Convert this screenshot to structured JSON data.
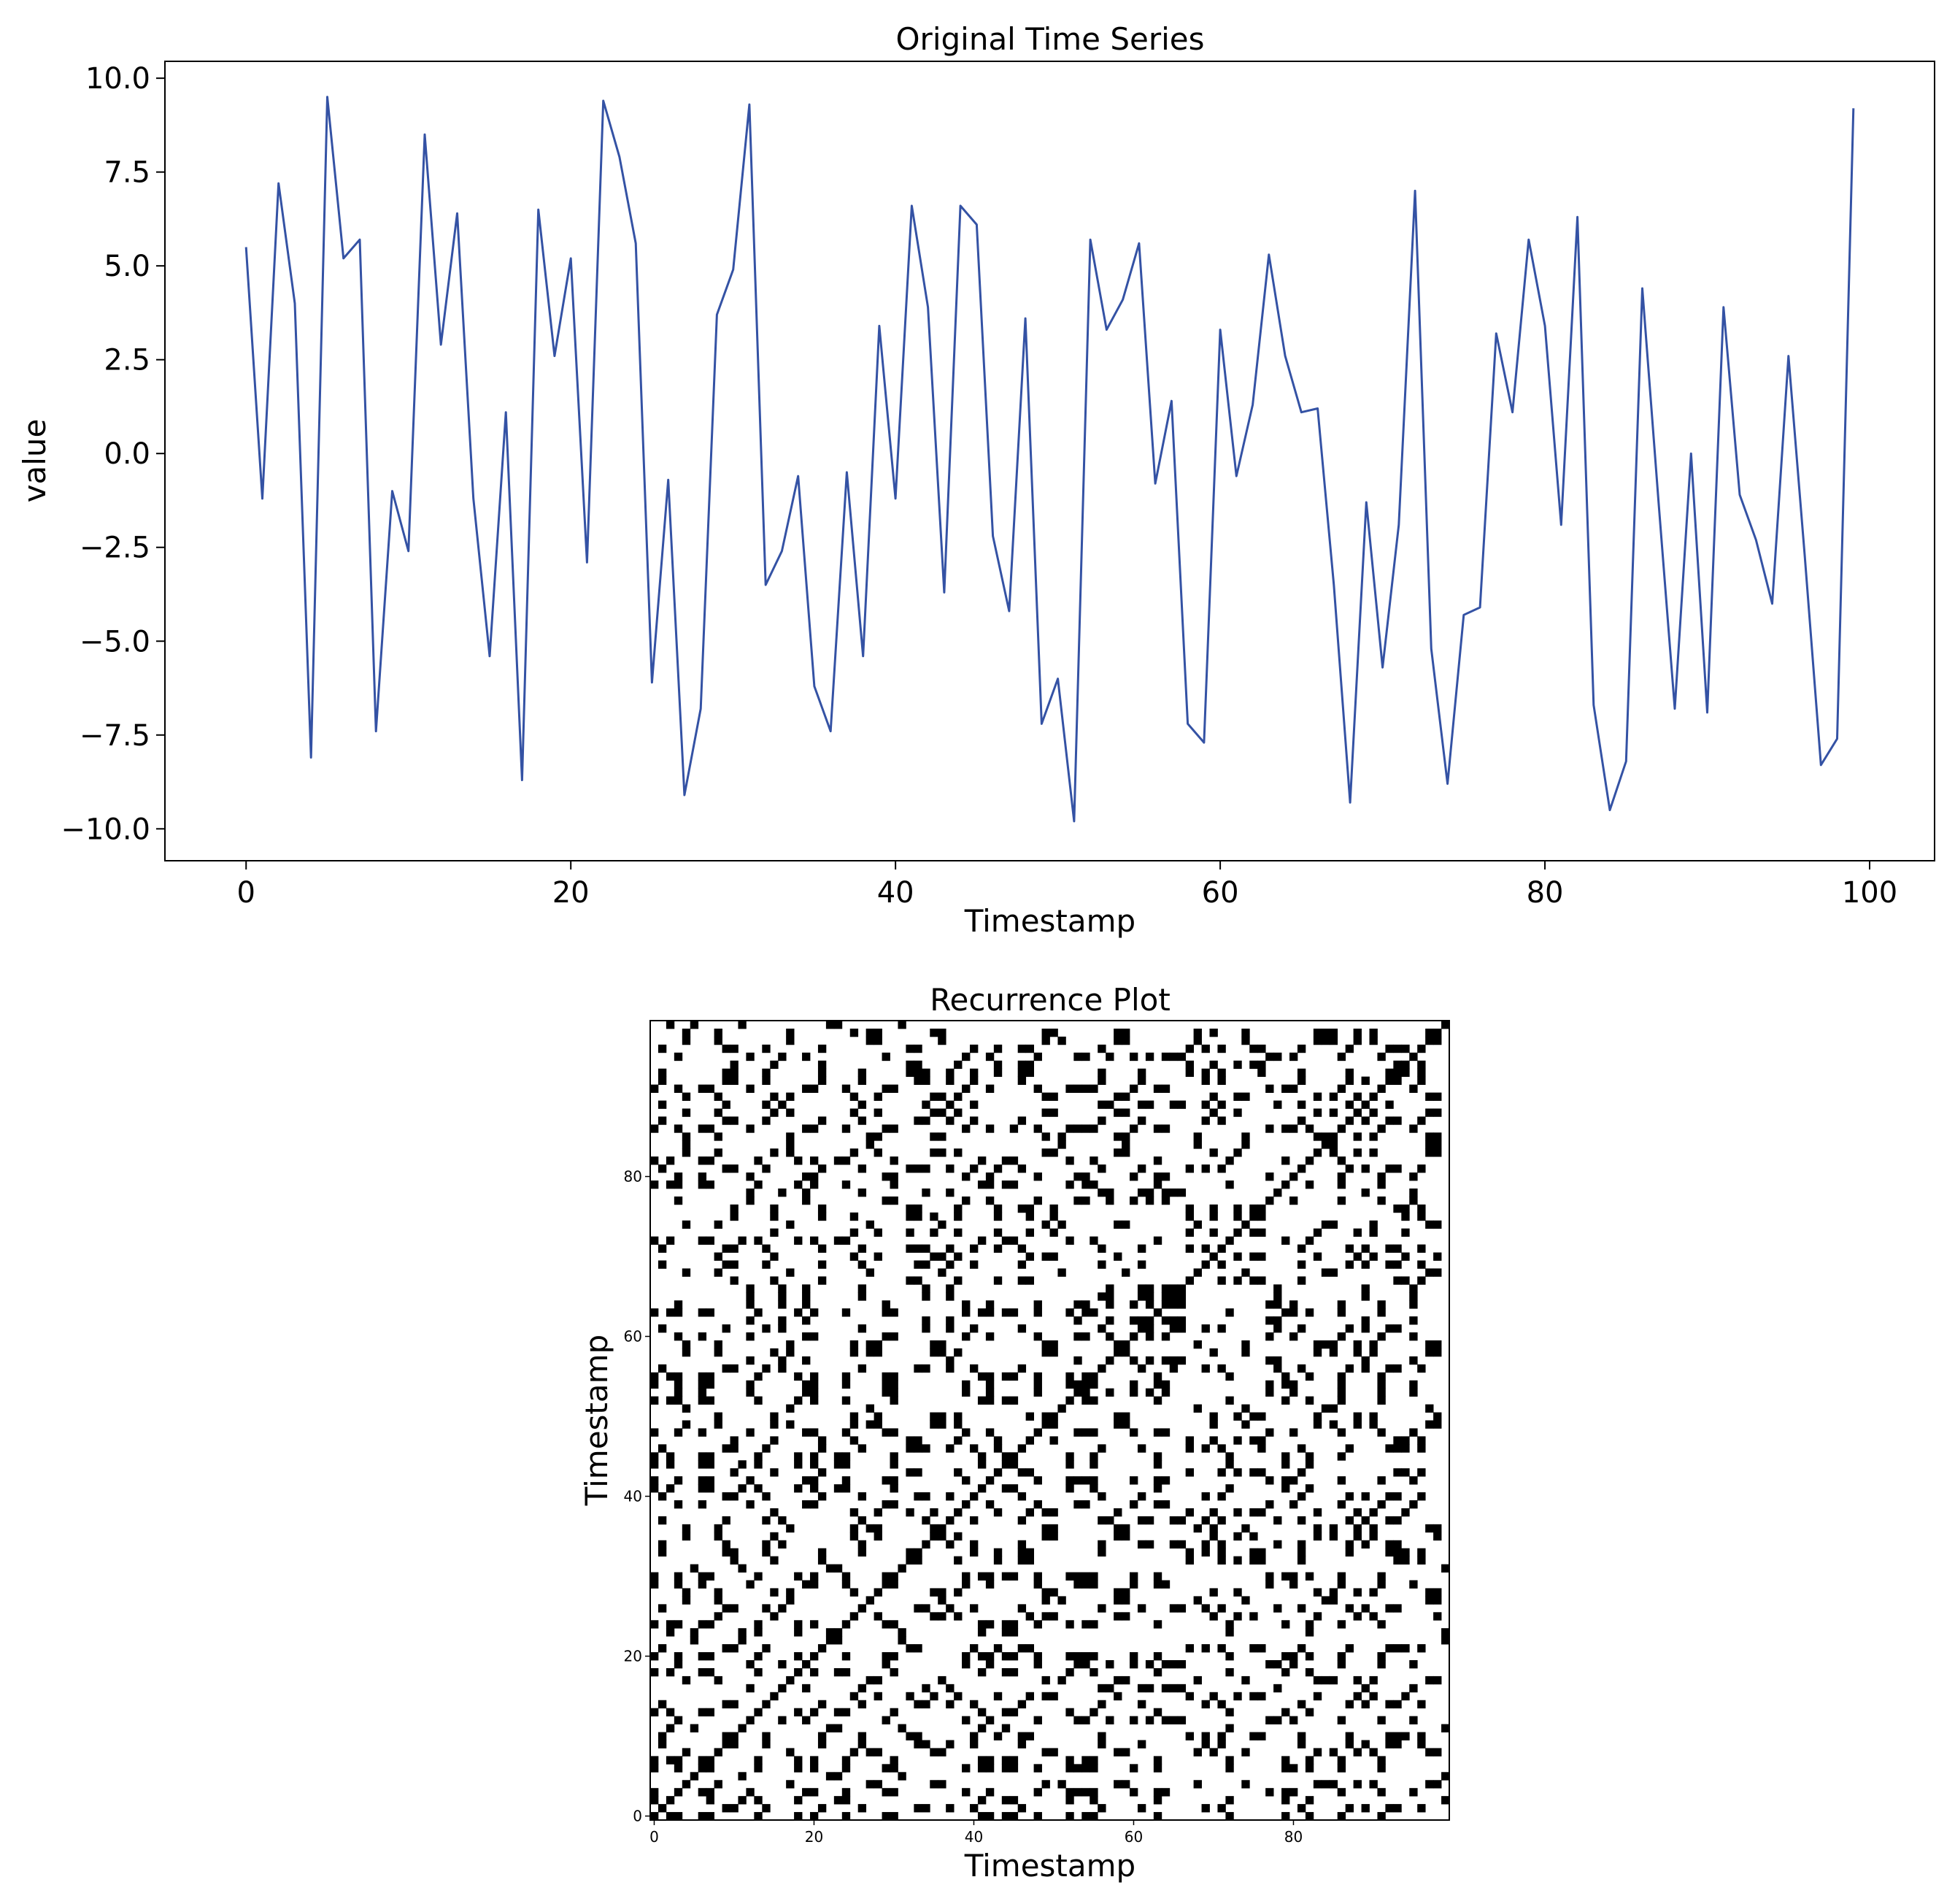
{
  "chart_data": [
    {
      "type": "line",
      "title": "Original Time Series",
      "xlabel": "Timestamp",
      "ylabel": "value",
      "xlim": [
        -5,
        104
      ],
      "ylim": [
        -10.85,
        10.45
      ],
      "xticks": [
        0,
        20,
        40,
        60,
        80,
        100
      ],
      "xtick_labels": [
        "0",
        "20",
        "40",
        "60",
        "80",
        "100"
      ],
      "yticks": [
        10.0,
        7.5,
        5.0,
        2.5,
        0.0,
        -2.5,
        -5.0,
        -7.5,
        -10.0
      ],
      "ytick_labels": [
        "10.0",
        "7.5",
        "5.0",
        "2.5",
        "0.0",
        "−2.5",
        "−5.0",
        "−7.5",
        "−10.0"
      ],
      "grid": false,
      "line_color": "#3452a4",
      "series": [
        {
          "x": [
            0,
            1,
            2,
            3,
            4,
            5,
            6,
            7,
            8,
            9,
            10,
            11,
            12,
            13,
            14,
            15,
            16,
            17,
            18,
            19,
            20,
            21,
            22,
            23,
            24,
            25,
            26,
            27,
            28,
            29,
            30,
            31,
            32,
            33,
            34,
            35,
            36,
            37,
            38,
            39,
            40,
            41,
            42,
            43,
            44,
            45,
            46,
            47,
            48,
            49,
            50,
            51,
            52,
            53,
            54,
            55,
            56,
            57,
            58,
            59,
            60,
            61,
            62,
            63,
            64,
            65,
            66,
            67,
            68,
            69,
            70,
            71,
            72,
            73,
            74,
            75,
            76,
            77,
            78,
            79,
            80,
            81,
            82,
            83,
            84,
            85,
            86,
            87,
            88,
            89,
            90,
            91,
            92,
            93,
            94,
            95,
            96,
            97,
            98,
            99
          ],
          "y": [
            5.5,
            -1.2,
            7.2,
            4.0,
            -8.1,
            9.5,
            5.2,
            5.7,
            -7.4,
            -1.0,
            -2.6,
            8.5,
            2.9,
            6.4,
            -1.2,
            -5.4,
            1.1,
            -8.7,
            6.5,
            2.6,
            5.2,
            -2.9,
            9.4,
            7.9,
            5.6,
            -6.1,
            -0.7,
            -9.1,
            -6.8,
            3.7,
            4.9,
            9.3,
            -3.5,
            -2.6,
            -0.6,
            -6.2,
            -7.4,
            -0.5,
            -5.4,
            3.4,
            -1.2,
            6.6,
            3.9,
            -3.7,
            6.6,
            6.1,
            -2.2,
            -4.2,
            3.6,
            -7.2,
            -6.0,
            -9.8,
            5.7,
            3.3,
            4.1,
            5.6,
            -0.8,
            1.4,
            -7.2,
            -7.7,
            3.3,
            -0.6,
            1.3,
            5.3,
            2.6,
            1.1,
            1.2,
            -3.5,
            -9.3,
            -1.3,
            -5.7,
            -1.9,
            7.0,
            -5.2,
            -8.8,
            -4.3,
            -4.1,
            3.2,
            1.1,
            5.7,
            3.4,
            -1.9,
            6.3,
            -6.7,
            -9.5,
            -8.2,
            4.4,
            -1.3,
            -6.8,
            0.0,
            -6.9,
            3.9,
            -1.1,
            -2.3,
            -4.0,
            2.6,
            -2.7,
            -8.3,
            -7.6,
            9.2
          ]
        }
      ]
    },
    {
      "type": "heatmap",
      "title": "Recurrence Plot",
      "xlabel": "Timestamp",
      "ylabel": "Timestamp",
      "xlim": [
        0,
        99
      ],
      "ylim": [
        0,
        99
      ],
      "xticks": [
        0,
        20,
        40,
        60,
        80
      ],
      "xtick_labels": [
        "0",
        "20",
        "40",
        "60",
        "80"
      ],
      "yticks": [
        0,
        20,
        40,
        60,
        80
      ],
      "ytick_labels": [
        "0",
        "20",
        "40",
        "60",
        "80"
      ],
      "cmap": "binary",
      "recurrence_threshold": 2.0,
      "matrix_source": "recurrence of series values: cell (i,j) black when |y_i - y_j| < threshold"
    }
  ]
}
